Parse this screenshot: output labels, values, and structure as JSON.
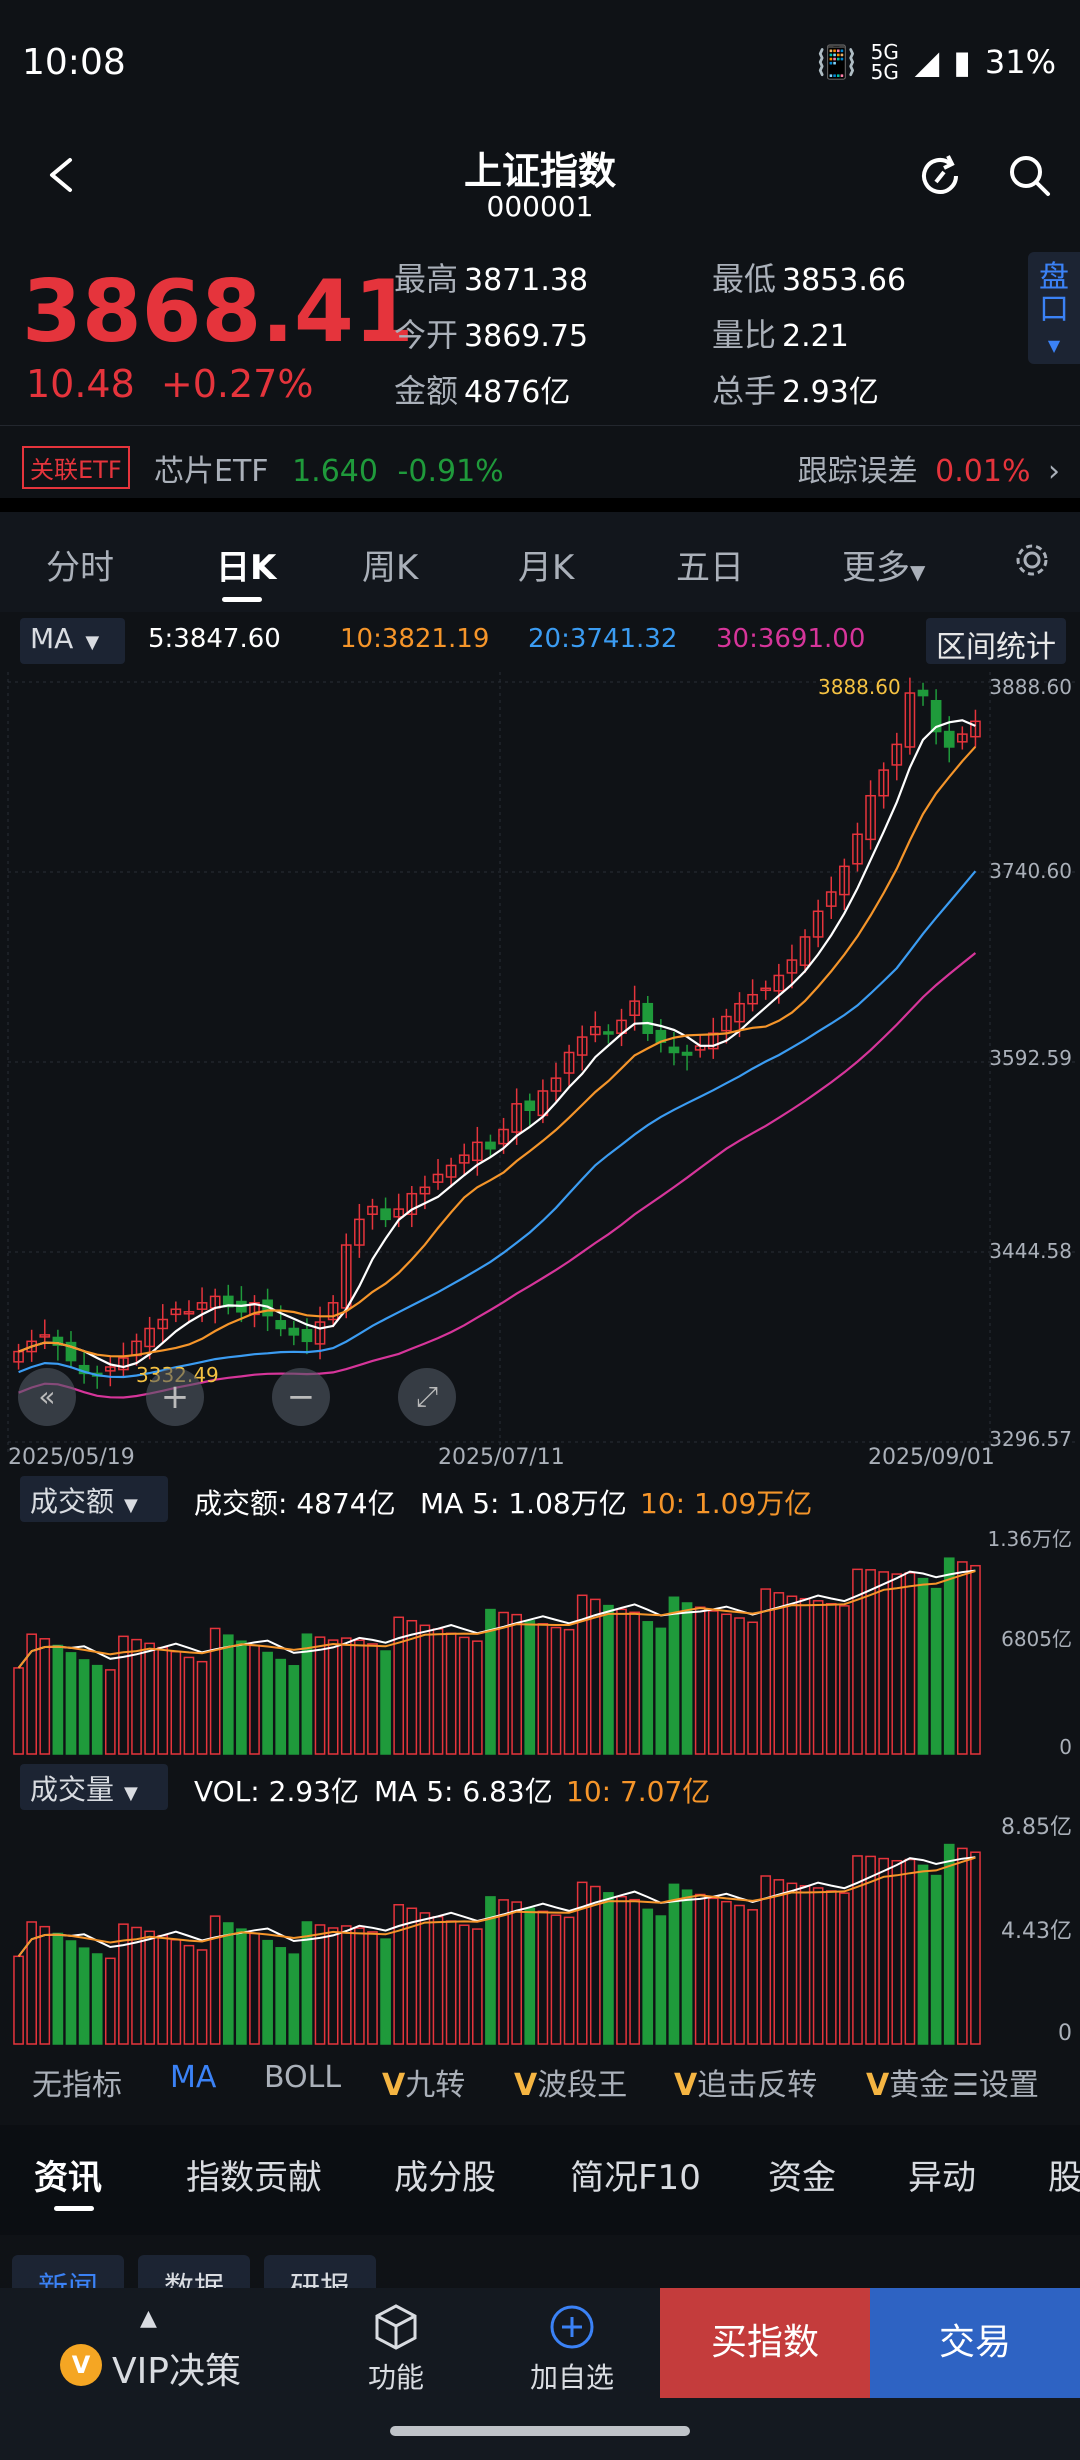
{
  "status": {
    "time": "10:08",
    "battery": "31%",
    "network": "5G 5G"
  },
  "header": {
    "title": "上证指数",
    "code": "000001"
  },
  "quote": {
    "price": "3868.41",
    "change": "10.48",
    "change_pct": "+0.27%",
    "stats": [
      {
        "label": "最高",
        "value": "3871.38"
      },
      {
        "label": "最低",
        "value": "3853.66"
      },
      {
        "label": "今开",
        "value": "3869.75"
      },
      {
        "label": "量比",
        "value": "2.21"
      },
      {
        "label": "金额",
        "value": "4876亿"
      },
      {
        "label": "总手",
        "value": "2.93亿"
      }
    ],
    "side_tab": "盘口"
  },
  "etf": {
    "tag": "关联ETF",
    "name": "芯片ETF",
    "price": "1.640",
    "change": "-0.91%",
    "error_label": "跟踪误差",
    "error_value": "0.01%"
  },
  "tabs": [
    "分时",
    "日K",
    "周K",
    "月K",
    "五日",
    "更多"
  ],
  "active_tab": "日K",
  "ma_bar": {
    "select": "MA",
    "ma5": "5:3847.60",
    "ma10": "10:3821.19",
    "ma20": "20:3741.32",
    "ma30": "30:3691.00",
    "range_btn": "区间统计"
  },
  "colors": {
    "up": "#e5343c",
    "down": "#1f9a3b",
    "ma5": "#ffffff",
    "ma10": "#f5952a",
    "ma20": "#3b9cf2",
    "ma30": "#d6359a"
  },
  "kline": {
    "high_label": "3888.60",
    "low_label": "3332.49",
    "dates": [
      "2025/05/19",
      "2025/07/11",
      "2025/09/01"
    ],
    "y_ticks": [
      "3888.60",
      "3740.60",
      "3592.59",
      "3444.58",
      "3296.57"
    ]
  },
  "amount_panel": {
    "select": "成交额",
    "value": "成交额: 4874亿",
    "ma5": "MA 5: 1.08万亿",
    "ma10": "10: 1.09万亿",
    "y_ticks": [
      "1.36万亿",
      "6805亿",
      "0"
    ]
  },
  "volume_panel": {
    "select": "成交量",
    "value": "VOL: 2.93亿",
    "ma5": "MA 5: 6.83亿",
    "ma10": "10: 7.07亿",
    "y_ticks": [
      "8.85亿",
      "4.43亿",
      "0"
    ]
  },
  "indicators": [
    "无指标",
    "MA",
    "BOLL",
    "九转",
    "波段王",
    "追击反转",
    "黄金"
  ],
  "indicator_settings": "设置",
  "news_tabs": [
    "资讯",
    "指数贡献",
    "成分股",
    "简况F10",
    "资金",
    "异动",
    "股"
  ],
  "news_subtabs": [
    "新闻",
    "数据",
    "研报"
  ],
  "bottom": {
    "vip": "VIP决策",
    "func": "功能",
    "add": "加自选",
    "buy": "买指数",
    "trade": "交易"
  },
  "chart_data": {
    "type": "candlestick",
    "x_start": "2025/05/19",
    "x_mid": "2025/07/11",
    "x_end": "2025/09/01",
    "y_ticks": [
      3888.6,
      3740.6,
      3592.59,
      3444.58,
      3296.57
    ],
    "closes": [
      3367,
      3375,
      3380,
      3372,
      3360,
      3350,
      3348,
      3355,
      3362,
      3375,
      3385,
      3392,
      3400,
      3398,
      3405,
      3410,
      3402,
      3398,
      3405,
      3395,
      3385,
      3380,
      3375,
      3390,
      3405,
      3450,
      3470,
      3480,
      3470,
      3478,
      3490,
      3495,
      3505,
      3512,
      3520,
      3530,
      3525,
      3540,
      3560,
      3555,
      3570,
      3580,
      3600,
      3612,
      3620,
      3615,
      3625,
      3640,
      3615,
      3608,
      3600,
      3598,
      3605,
      3615,
      3628,
      3638,
      3645,
      3650,
      3660,
      3672,
      3690,
      3710,
      3725,
      3745,
      3770,
      3800,
      3820,
      3840,
      3880,
      3878,
      3850,
      3838,
      3848,
      3858
    ],
    "amount_ma_units": "亿"
  }
}
